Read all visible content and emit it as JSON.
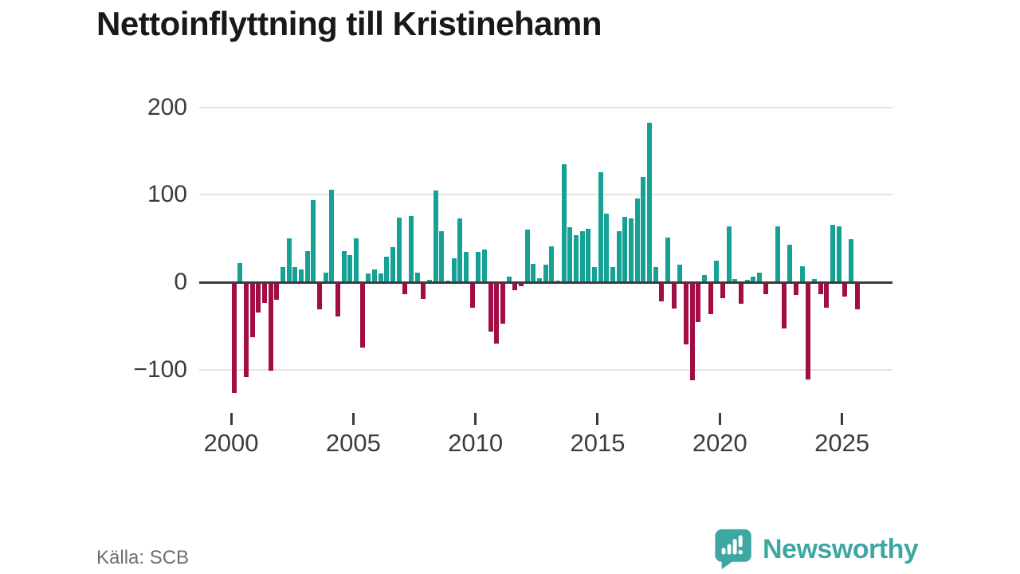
{
  "title": "Nettoinflyttning till Kristinehamn",
  "source_note": "Källa: SCB",
  "branding": {
    "logo_text": "Newsworthy",
    "logo_icon": "bar-chart-speech-bubble-icon"
  },
  "colors": {
    "positive_bar": "#16a195",
    "negative_bar": "#a10d44",
    "gridline": "#e4e4e4",
    "zero_line": "#3b3b3b",
    "axis_text": "#3c3c3c",
    "title_text": "#191919",
    "source_text": "#6f6f6f",
    "brand_teal": "#3fa7a3"
  },
  "chart_data": {
    "type": "bar",
    "title": "Nettoinflyttning till Kristinehamn",
    "xlabel": "",
    "ylabel": "",
    "frequency": "quarterly",
    "period_start": "2000 Q1",
    "period_end": "2025 Q3",
    "grid": "horizontal",
    "legend": "none",
    "ylim": [
      -135,
      215
    ],
    "y_ticks": [
      200,
      100,
      0,
      -100
    ],
    "y_tick_labels": [
      "200",
      "100",
      "0",
      "−100"
    ],
    "x_tick_years": [
      2000,
      2005,
      2010,
      2015,
      2020,
      2025
    ],
    "x_tick_labels": [
      "2000",
      "2005",
      "2010",
      "2015",
      "2020",
      "2025"
    ],
    "series_name": "Nettoinflyttning",
    "values": [
      -125,
      22,
      -107,
      -61,
      -33,
      -22,
      -99,
      -18,
      17,
      50,
      17,
      15,
      36,
      94,
      -29,
      11,
      106,
      -37,
      36,
      31,
      50,
      -73,
      10,
      15,
      10,
      29,
      40,
      74,
      -12,
      76,
      11,
      -17,
      3,
      105,
      58,
      2,
      27,
      73,
      35,
      -27,
      35,
      37,
      -55,
      -68,
      -46,
      6,
      -7,
      -3,
      60,
      21,
      5,
      20,
      41,
      2,
      135,
      63,
      54,
      58,
      61,
      17,
      126,
      78,
      17,
      58,
      75,
      73,
      96,
      120,
      182,
      17,
      -20,
      51,
      -28,
      20,
      -69,
      -110,
      -44,
      8,
      -35,
      25,
      -16,
      64,
      4,
      -23,
      3,
      6,
      11,
      -12,
      0,
      64,
      -51,
      43,
      -13,
      18,
      -109,
      4,
      -12,
      -27,
      66,
      64,
      -15,
      49,
      -29
    ]
  }
}
